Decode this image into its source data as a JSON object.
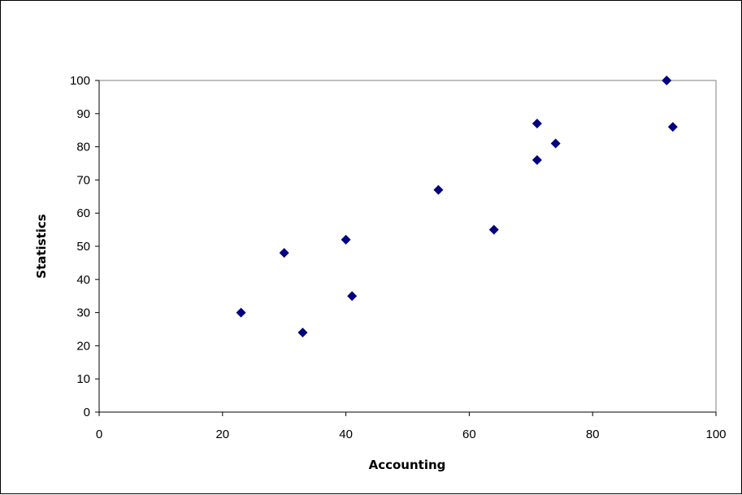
{
  "chart_data": {
    "type": "scatter",
    "title": "",
    "xlabel": "Accounting",
    "ylabel": "Statistics",
    "xlim": [
      0,
      100
    ],
    "ylim": [
      0,
      100
    ],
    "xticks": [
      0,
      20,
      40,
      60,
      80,
      100
    ],
    "yticks": [
      0,
      10,
      20,
      30,
      40,
      50,
      60,
      70,
      80,
      90,
      100
    ],
    "grid": false,
    "legend": "none",
    "marker": "diamond",
    "marker_color": "#000080",
    "series": [
      {
        "points": [
          {
            "x": 23,
            "y": 30
          },
          {
            "x": 30,
            "y": 48
          },
          {
            "x": 33,
            "y": 24
          },
          {
            "x": 40,
            "y": 52
          },
          {
            "x": 41,
            "y": 35
          },
          {
            "x": 55,
            "y": 67
          },
          {
            "x": 64,
            "y": 55
          },
          {
            "x": 71,
            "y": 87
          },
          {
            "x": 71,
            "y": 76
          },
          {
            "x": 74,
            "y": 81
          },
          {
            "x": 92,
            "y": 100
          },
          {
            "x": 93,
            "y": 86
          }
        ]
      }
    ]
  }
}
